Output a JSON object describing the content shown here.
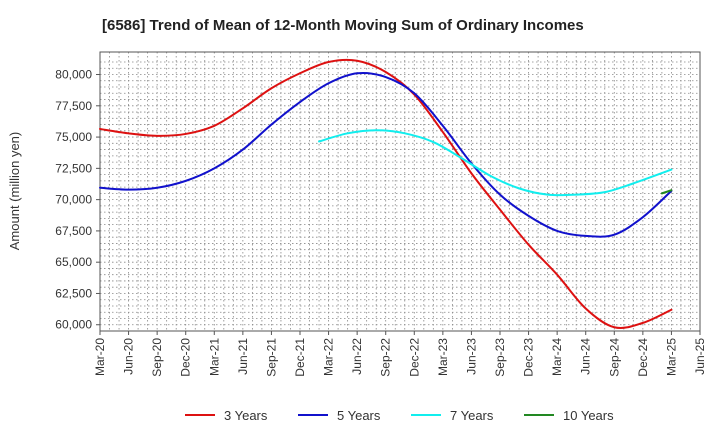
{
  "chart_data": {
    "type": "line",
    "title": "[6586]  Trend of Mean of 12-Month Moving Sum of Ordinary Incomes",
    "xlabel": "",
    "ylabel": "Amount (million yen)",
    "ylim": [
      59500,
      81800
    ],
    "yticks": [
      60000,
      62500,
      65000,
      67500,
      70000,
      72500,
      75000,
      77500,
      80000
    ],
    "ytick_labels": [
      "60,000",
      "62,500",
      "65,000",
      "67,500",
      "70,000",
      "72,500",
      "75,000",
      "77,500",
      "80,000"
    ],
    "xlim": [
      0,
      63
    ],
    "xticks": [
      0,
      3,
      6,
      9,
      12,
      15,
      18,
      21,
      24,
      27,
      30,
      33,
      36,
      39,
      42,
      45,
      48,
      51,
      54,
      57,
      60,
      63
    ],
    "xtick_labels": [
      "Mar-20",
      "Jun-20",
      "Sep-20",
      "Dec-20",
      "Mar-21",
      "Jun-21",
      "Sep-21",
      "Dec-21",
      "Mar-22",
      "Jun-22",
      "Sep-22",
      "Dec-22",
      "Mar-23",
      "Jun-23",
      "Sep-23",
      "Dec-23",
      "Mar-24",
      "Jun-24",
      "Sep-24",
      "Dec-24",
      "Mar-25",
      "Jun-25"
    ],
    "grid": true,
    "legend_position": "bottom",
    "series": [
      {
        "name": "3 Years",
        "color": "#dd1111",
        "x": [
          0,
          3,
          6,
          9,
          12,
          15,
          18,
          21,
          24,
          27,
          30,
          33,
          36,
          39,
          42,
          45,
          48,
          51,
          54,
          57,
          60
        ],
        "values": [
          75650,
          75300,
          75100,
          75250,
          75900,
          77300,
          78900,
          80100,
          81000,
          81100,
          80200,
          78400,
          75400,
          72100,
          69200,
          66400,
          64000,
          61300,
          59800,
          60150,
          61200
        ]
      },
      {
        "name": "5 Years",
        "color": "#1111cc",
        "x": [
          0,
          3,
          6,
          9,
          12,
          15,
          18,
          21,
          24,
          27,
          30,
          33,
          36,
          39,
          42,
          45,
          48,
          51,
          54,
          57,
          60
        ],
        "values": [
          70950,
          70800,
          70950,
          71500,
          72500,
          74000,
          76000,
          77800,
          79300,
          80100,
          79800,
          78500,
          75900,
          72900,
          70400,
          68700,
          67500,
          67100,
          67200,
          68600,
          70700
        ]
      },
      {
        "name": "7 Years",
        "color": "#11eeee",
        "x": [
          23,
          26,
          29,
          32,
          35,
          38,
          41,
          44,
          47,
          50,
          53,
          56,
          60
        ],
        "values": [
          74650,
          75300,
          75550,
          75300,
          74600,
          73300,
          71900,
          70900,
          70400,
          70400,
          70600,
          71300,
          72400
        ]
      },
      {
        "name": "10 Years",
        "color": "#228822",
        "x": [
          59,
          60
        ],
        "values": [
          70500,
          70750
        ]
      }
    ]
  }
}
